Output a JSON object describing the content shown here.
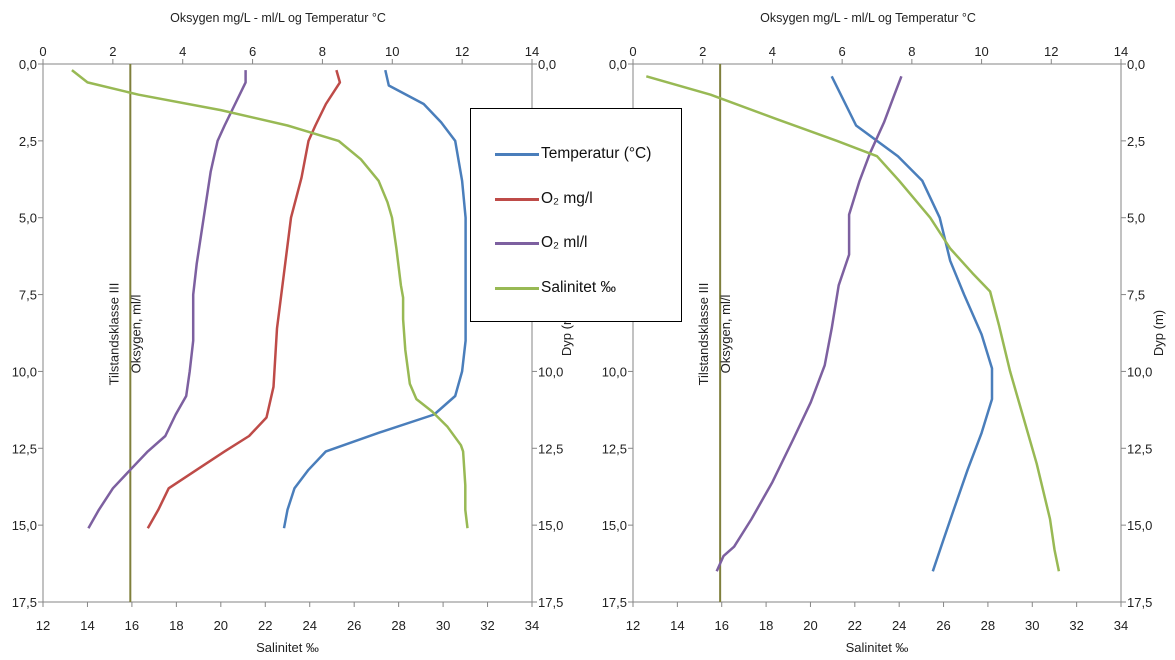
{
  "colors": {
    "temperature": "#4a7ebb",
    "o2_mgl": "#be4b48",
    "o2_mll": "#7d60a0",
    "salinity": "#98b954",
    "threshold": "#7f7f3c"
  },
  "legend": [
    {
      "label": "Temperatur (°C)",
      "color": "#4a7ebb"
    },
    {
      "label": "O₂ mg/l",
      "color": "#be4b48"
    },
    {
      "label": "O₂ ml/l",
      "color": "#7d60a0"
    },
    {
      "label": "Salinitet ‰",
      "color": "#98b954"
    }
  ],
  "chart_data": [
    {
      "type": "line",
      "title": "Oksygen mg/L - ml/L og Temperatur °C",
      "xlabel_bottom": "Salinitet ‰",
      "xlabel_top": "",
      "ylabel": "Dyp (m)",
      "top_axis": {
        "range": [
          0,
          14
        ],
        "ticks": [
          "0",
          "2",
          "4",
          "6",
          "8",
          "10",
          "12",
          "14"
        ]
      },
      "bottom_axis": {
        "range": [
          12,
          34
        ],
        "ticks": [
          "12",
          "14",
          "16",
          "18",
          "20",
          "22",
          "24",
          "26",
          "28",
          "30",
          "32",
          "34"
        ]
      },
      "y_axis": {
        "range": [
          0,
          17.5
        ],
        "inverted": true,
        "ticks": [
          "0,0",
          "2,5",
          "5,0",
          "7,5",
          "10,0",
          "12,5",
          "15,0",
          "17,5"
        ]
      },
      "threshold": {
        "label_line1": "Tilstandsklasse III",
        "label_line2": "Oksygen, ml/l",
        "top_value": 2.5
      },
      "series": [
        {
          "name": "Temperatur (°C)",
          "axis": "top",
          "color": "#4a7ebb",
          "points": [
            [
              9.8,
              0.2
            ],
            [
              9.9,
              0.7
            ],
            [
              10.9,
              1.3
            ],
            [
              11.4,
              1.9
            ],
            [
              11.8,
              2.5
            ],
            [
              12.0,
              3.8
            ],
            [
              12.1,
              5.0
            ],
            [
              12.1,
              7.0
            ],
            [
              12.1,
              9.0
            ],
            [
              12.0,
              10.0
            ],
            [
              11.8,
              10.8
            ],
            [
              11.2,
              11.4
            ],
            [
              9.6,
              12.0
            ],
            [
              8.1,
              12.6
            ],
            [
              7.6,
              13.2
            ],
            [
              7.2,
              13.8
            ],
            [
              7.0,
              14.5
            ],
            [
              6.9,
              15.1
            ]
          ]
        },
        {
          "name": "O₂ mg/l",
          "axis": "top",
          "color": "#be4b48",
          "points": [
            [
              8.4,
              0.2
            ],
            [
              8.5,
              0.6
            ],
            [
              8.1,
              1.3
            ],
            [
              7.8,
              2.0
            ],
            [
              7.6,
              2.5
            ],
            [
              7.4,
              3.7
            ],
            [
              7.1,
              5.0
            ],
            [
              6.9,
              6.8
            ],
            [
              6.7,
              8.6
            ],
            [
              6.6,
              10.5
            ],
            [
              6.4,
              11.5
            ],
            [
              5.9,
              12.1
            ],
            [
              5.2,
              12.6
            ],
            [
              4.4,
              13.2
            ],
            [
              3.6,
              13.8
            ],
            [
              3.3,
              14.5
            ],
            [
              3.0,
              15.1
            ]
          ]
        },
        {
          "name": "O₂ ml/l",
          "axis": "top",
          "color": "#7d60a0",
          "points": [
            [
              5.8,
              0.2
            ],
            [
              5.8,
              0.6
            ],
            [
              5.5,
              1.3
            ],
            [
              5.2,
              2.0
            ],
            [
              5.0,
              2.5
            ],
            [
              4.8,
              3.5
            ],
            [
              4.6,
              5.0
            ],
            [
              4.4,
              6.5
            ],
            [
              4.3,
              7.5
            ],
            [
              4.3,
              9.0
            ],
            [
              4.2,
              10.0
            ],
            [
              4.1,
              10.8
            ],
            [
              3.8,
              11.4
            ],
            [
              3.5,
              12.1
            ],
            [
              3.0,
              12.6
            ],
            [
              2.5,
              13.2
            ],
            [
              2.0,
              13.8
            ],
            [
              1.6,
              14.5
            ],
            [
              1.3,
              15.1
            ]
          ]
        },
        {
          "name": "Salinitet ‰",
          "axis": "bottom",
          "color": "#98b954",
          "points": [
            [
              13.3,
              0.2
            ],
            [
              14.0,
              0.6
            ],
            [
              16.3,
              1.0
            ],
            [
              20.0,
              1.5
            ],
            [
              23.0,
              2.0
            ],
            [
              25.3,
              2.5
            ],
            [
              26.3,
              3.1
            ],
            [
              27.1,
              3.8
            ],
            [
              27.5,
              4.5
            ],
            [
              27.7,
              5.0
            ],
            [
              27.9,
              6.0
            ],
            [
              28.1,
              7.2
            ],
            [
              28.2,
              7.6
            ],
            [
              28.2,
              8.3
            ],
            [
              28.3,
              9.3
            ],
            [
              28.5,
              10.4
            ],
            [
              28.8,
              10.9
            ],
            [
              29.5,
              11.3
            ],
            [
              30.2,
              11.8
            ],
            [
              30.8,
              12.4
            ],
            [
              30.9,
              12.6
            ],
            [
              31.0,
              13.7
            ],
            [
              31.0,
              14.5
            ],
            [
              31.1,
              15.1
            ]
          ]
        }
      ]
    },
    {
      "type": "line",
      "title": "Oksygen mg/L - ml/L og Temperatur °C",
      "xlabel_bottom": "Salinitet ‰",
      "xlabel_top": "",
      "ylabel": "Dyp (m)",
      "top_axis": {
        "range": [
          0,
          14
        ],
        "ticks": [
          "0",
          "2",
          "4",
          "6",
          "8",
          "10",
          "12",
          "14"
        ]
      },
      "bottom_axis": {
        "range": [
          12,
          34
        ],
        "ticks": [
          "12",
          "14",
          "16",
          "18",
          "20",
          "22",
          "24",
          "26",
          "28",
          "30",
          "32",
          "34"
        ]
      },
      "y_axis": {
        "range": [
          0,
          17.5
        ],
        "inverted": true,
        "ticks": [
          "0,0",
          "2,5",
          "5,0",
          "7,5",
          "10,0",
          "12,5",
          "15,0",
          "17,5"
        ]
      },
      "threshold": {
        "label_line1": "Tilstandsklasse III",
        "label_line2": "Oksygen, ml/l",
        "top_value": 2.5
      },
      "series": [
        {
          "name": "Temperatur (°C)",
          "axis": "top",
          "color": "#4a7ebb",
          "points": [
            [
              5.7,
              0.4
            ],
            [
              6.4,
              2.0
            ],
            [
              7.6,
              3.0
            ],
            [
              8.3,
              3.8
            ],
            [
              8.8,
              5.0
            ],
            [
              9.1,
              6.4
            ],
            [
              9.5,
              7.5
            ],
            [
              10.0,
              8.8
            ],
            [
              10.3,
              9.9
            ],
            [
              10.3,
              10.9
            ],
            [
              10.0,
              12.0
            ],
            [
              9.6,
              13.2
            ],
            [
              9.2,
              14.5
            ],
            [
              8.9,
              15.5
            ],
            [
              8.6,
              16.5
            ]
          ]
        },
        {
          "name": "O₂ ml/l",
          "axis": "top",
          "color": "#7d60a0",
          "points": [
            [
              7.7,
              0.4
            ],
            [
              7.5,
              1.0
            ],
            [
              7.2,
              1.9
            ],
            [
              6.8,
              2.9
            ],
            [
              6.5,
              3.8
            ],
            [
              6.2,
              4.9
            ],
            [
              6.2,
              6.2
            ],
            [
              5.9,
              7.2
            ],
            [
              5.7,
              8.6
            ],
            [
              5.5,
              9.8
            ],
            [
              5.1,
              11.0
            ],
            [
              4.6,
              12.2
            ],
            [
              4.0,
              13.6
            ],
            [
              3.4,
              14.8
            ],
            [
              2.9,
              15.7
            ],
            [
              2.6,
              16.0
            ],
            [
              2.4,
              16.5
            ]
          ]
        },
        {
          "name": "Salinitet ‰",
          "axis": "bottom",
          "color": "#98b954",
          "points": [
            [
              12.6,
              0.4
            ],
            [
              15.5,
              1.0
            ],
            [
              18.5,
              1.8
            ],
            [
              21.2,
              2.5
            ],
            [
              23.0,
              3.0
            ],
            [
              24.0,
              3.8
            ],
            [
              25.4,
              5.0
            ],
            [
              26.3,
              6.0
            ],
            [
              27.3,
              6.8
            ],
            [
              28.1,
              7.4
            ],
            [
              28.5,
              8.5
            ],
            [
              29.0,
              10.0
            ],
            [
              29.6,
              11.5
            ],
            [
              30.2,
              13.0
            ],
            [
              30.8,
              14.8
            ],
            [
              31.0,
              15.8
            ],
            [
              31.2,
              16.5
            ]
          ]
        }
      ]
    }
  ]
}
